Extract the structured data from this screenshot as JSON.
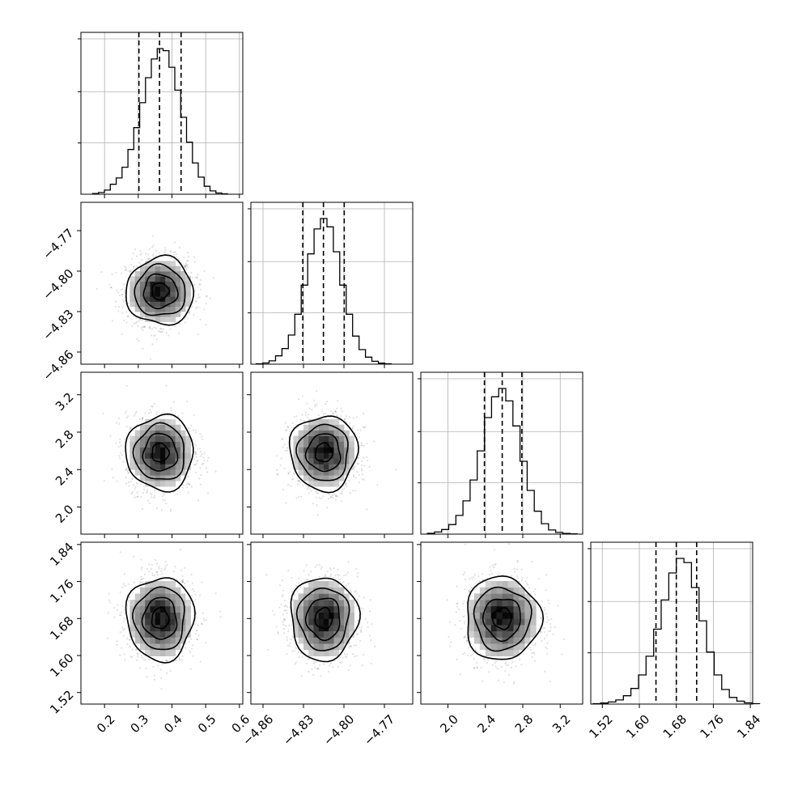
{
  "chart_data": {
    "type": "corner",
    "parameters": [
      {
        "ticks": [
          0.2,
          0.3,
          0.4,
          0.5,
          0.6
        ],
        "tick_labels": [
          "0.2",
          "0.3",
          "0.4",
          "0.5",
          "0.6"
        ],
        "range": [
          0.13,
          0.61
        ],
        "mean": 0.365,
        "sd": 0.05,
        "quantiles": [
          0.302,
          0.363,
          0.427
        ],
        "hist_levels": [
          3,
          8,
          20,
          48,
          78,
          130,
          215,
          320,
          440,
          560,
          650,
          700,
          690,
          610,
          500,
          370,
          250,
          150,
          82,
          38,
          16,
          6,
          2
        ]
      },
      {
        "ticks": [
          -4.86,
          -4.83,
          -4.8,
          -4.77
        ],
        "tick_labels": [
          "−4.86",
          "−4.83",
          "−4.80",
          "−4.77"
        ],
        "range": [
          -4.869,
          -4.749
        ],
        "mean": -4.815,
        "sd": 0.0125,
        "quantiles": [
          -4.8305,
          -4.8152,
          -4.7998
        ],
        "hist_levels": [
          2,
          6,
          16,
          40,
          75,
          140,
          240,
          380,
          530,
          650,
          700,
          660,
          540,
          380,
          240,
          135,
          70,
          34,
          14,
          5,
          2
        ]
      },
      {
        "ticks": [
          2.0,
          2.4,
          2.8,
          3.2
        ],
        "tick_labels": [
          "2.0",
          "2.4",
          "2.8",
          "3.2"
        ],
        "range": [
          1.71,
          3.44
        ],
        "mean": 2.58,
        "sd": 0.2,
        "quantiles": [
          2.39,
          2.58,
          2.79
        ],
        "hist_levels": [
          4,
          10,
          22,
          46,
          90,
          160,
          260,
          400,
          560,
          660,
          700,
          640,
          520,
          350,
          210,
          110,
          50,
          20,
          8,
          3,
          1
        ]
      },
      {
        "ticks": [
          1.52,
          1.6,
          1.68,
          1.76,
          1.84
        ],
        "tick_labels": [
          "1.52",
          "1.60",
          "1.68",
          "1.76",
          "1.84"
        ],
        "range": [
          1.495,
          1.845
        ],
        "mean": 1.68,
        "sd": 0.045,
        "quantiles": [
          1.636,
          1.68,
          1.724
        ],
        "hist_levels": [
          2,
          5,
          10,
          20,
          40,
          75,
          140,
          230,
          360,
          500,
          630,
          700,
          680,
          560,
          400,
          250,
          140,
          70,
          32,
          14,
          6,
          2
        ]
      }
    ],
    "contour_levels": [
      0.5,
      1.0,
      1.5,
      2.0
    ],
    "grid": true
  }
}
